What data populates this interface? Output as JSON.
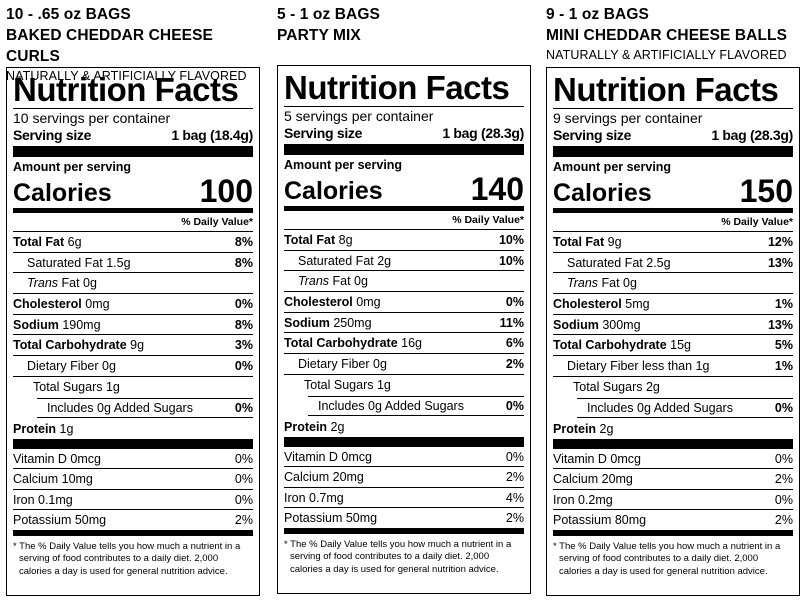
{
  "products": [
    {
      "quantity": "10 - .65 oz BAGS",
      "name": "BAKED CHEDDAR CHEESE CURLS",
      "flavor_note": "NATURALLY & ARTIFICIALLY FLAVORED",
      "label": {
        "title": "Nutrition Facts",
        "servings": "10 servings per container",
        "serving_size_label": "Serving size",
        "serving_size_value": "1 bag (18.4g)",
        "amount_per_serving": "Amount per serving",
        "calories_label": "Calories",
        "calories": "100",
        "dv_header": "% Daily Value*",
        "total_fat_label": "Total Fat",
        "total_fat": "6g",
        "total_fat_dv": "8%",
        "sat_fat_label": "Saturated Fat",
        "sat_fat": "1.5g",
        "sat_fat_dv": "8%",
        "trans_fat_label": "Trans",
        "trans_fat_rest": "Fat 0g",
        "cholesterol_label": "Cholesterol",
        "cholesterol": "0mg",
        "cholesterol_dv": "0%",
        "sodium_label": "Sodium",
        "sodium": "190mg",
        "sodium_dv": "8%",
        "carb_label": "Total Carbohydrate",
        "carb": "9g",
        "carb_dv": "3%",
        "fiber_text": "Dietary Fiber 0g",
        "fiber_dv": "0%",
        "sugars_text": "Total Sugars 1g",
        "added_sugars_text": "Includes 0g Added Sugars",
        "added_sugars_dv": "0%",
        "protein_label": "Protein",
        "protein": "1g",
        "vitamin_d": "Vitamin D 0mcg",
        "vitamin_d_dv": "0%",
        "calcium": "Calcium 10mg",
        "calcium_dv": "0%",
        "iron": "Iron 0.1mg",
        "iron_dv": "0%",
        "potassium": "Potassium 50mg",
        "potassium_dv": "2%",
        "footnote": "* The % Daily Value tells you how much a nutrient in a serving of food contributes to a daily diet. 2,000 calories a day is used for general nutrition advice."
      }
    },
    {
      "quantity": "5 - 1 oz BAGS",
      "name": "PARTY MIX",
      "flavor_note": "",
      "label": {
        "title": "Nutrition Facts",
        "servings": "5 servings per container",
        "serving_size_label": "Serving size",
        "serving_size_value": "1 bag (28.3g)",
        "amount_per_serving": "Amount per serving",
        "calories_label": "Calories",
        "calories": "140",
        "dv_header": "% Daily Value*",
        "total_fat_label": "Total Fat",
        "total_fat": "8g",
        "total_fat_dv": "10%",
        "sat_fat_label": "Saturated Fat",
        "sat_fat": "2g",
        "sat_fat_dv": "10%",
        "trans_fat_label": "Trans",
        "trans_fat_rest": "Fat 0g",
        "cholesterol_label": "Cholesterol",
        "cholesterol": "0mg",
        "cholesterol_dv": "0%",
        "sodium_label": "Sodium",
        "sodium": "250mg",
        "sodium_dv": "11%",
        "carb_label": "Total Carbohydrate",
        "carb": "16g",
        "carb_dv": "6%",
        "fiber_text": "Dietary Fiber 0g",
        "fiber_dv": "2%",
        "sugars_text": "Total Sugars 1g",
        "added_sugars_text": "Includes 0g Added Sugars",
        "added_sugars_dv": "0%",
        "protein_label": "Protein",
        "protein": "2g",
        "vitamin_d": "Vitamin D 0mcg",
        "vitamin_d_dv": "0%",
        "calcium": "Calcium 20mg",
        "calcium_dv": "2%",
        "iron": "Iron 0.7mg",
        "iron_dv": "4%",
        "potassium": "Potassium 50mg",
        "potassium_dv": "2%",
        "footnote": "* The % Daily Value tells you how much a nutrient in a serving of food contributes to a daily diet. 2,000 calories a day is used for general nutrition advice."
      }
    },
    {
      "quantity": "9 - 1 oz BAGS",
      "name": "MINI CHEDDAR CHEESE BALLS",
      "flavor_note": "NATURALLY & ARTIFICIALLY FLAVORED",
      "label": {
        "title": "Nutrition Facts",
        "servings": "9 servings per container",
        "serving_size_label": "Serving size",
        "serving_size_value": "1 bag (28.3g)",
        "amount_per_serving": "Amount per serving",
        "calories_label": "Calories",
        "calories": "150",
        "dv_header": "% Daily Value*",
        "total_fat_label": "Total Fat",
        "total_fat": "9g",
        "total_fat_dv": "12%",
        "sat_fat_label": "Saturated Fat",
        "sat_fat": "2.5g",
        "sat_fat_dv": "13%",
        "trans_fat_label": "Trans",
        "trans_fat_rest": "Fat 0g",
        "cholesterol_label": "Cholesterol",
        "cholesterol": "5mg",
        "cholesterol_dv": "1%",
        "sodium_label": "Sodium",
        "sodium": "300mg",
        "sodium_dv": "13%",
        "carb_label": "Total Carbohydrate",
        "carb": "15g",
        "carb_dv": "5%",
        "fiber_text": "Dietary Fiber less than 1g",
        "fiber_dv": "1%",
        "sugars_text": "Total Sugars 2g",
        "added_sugars_text": "Includes 0g Added Sugars",
        "added_sugars_dv": "0%",
        "protein_label": "Protein",
        "protein": "2g",
        "vitamin_d": "Vitamin D 0mcg",
        "vitamin_d_dv": "0%",
        "calcium": "Calcium 20mg",
        "calcium_dv": "2%",
        "iron": "Iron 0.2mg",
        "iron_dv": "0%",
        "potassium": "Potassium 80mg",
        "potassium_dv": "2%",
        "footnote": "* The % Daily Value tells you how much a nutrient in a serving of food contributes to a daily diet. 2,000 calories a day is used for general nutrition advice."
      }
    }
  ]
}
